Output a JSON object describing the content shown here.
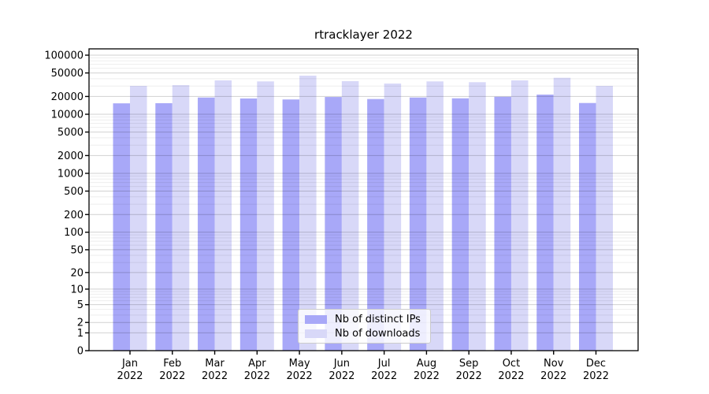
{
  "chart_data": {
    "type": "bar",
    "title": "rtracklayer 2022",
    "categories": [
      "Jan 2022",
      "Feb 2022",
      "Mar 2022",
      "Apr 2022",
      "May 2022",
      "Jun 2022",
      "Jul 2022",
      "Aug 2022",
      "Sep 2022",
      "Oct 2022",
      "Nov 2022",
      "Dec 2022"
    ],
    "series": [
      {
        "name": "Nb of distinct IPs",
        "color": "#a8a8f8",
        "values": [
          15300,
          15400,
          19200,
          18500,
          17800,
          19600,
          18100,
          19200,
          18600,
          19800,
          21500,
          15500
        ]
      },
      {
        "name": "Nb of downloads",
        "color": "#d8d8f8",
        "values": [
          30200,
          31100,
          37400,
          36000,
          45000,
          36300,
          33100,
          36000,
          34900,
          37400,
          41400,
          30200
        ]
      }
    ],
    "y_scale": "log1p",
    "y_tick_values": [
      0,
      1,
      2,
      5,
      10,
      20,
      50,
      100,
      200,
      500,
      1000,
      2000,
      5000,
      10000,
      20000,
      50000,
      100000
    ],
    "ylim": [
      0,
      131000
    ],
    "xlabel": "",
    "ylabel": "",
    "grid": "horizontal major and log-minor gridlines, drawn over bars",
    "legend_position": "bottom-center inside plot area",
    "bar_grouping": "pairs meeting at month tick: distinct IPs left, downloads right"
  },
  "axis_colors": {
    "spine": "#000000",
    "tick_label": "#000000"
  }
}
